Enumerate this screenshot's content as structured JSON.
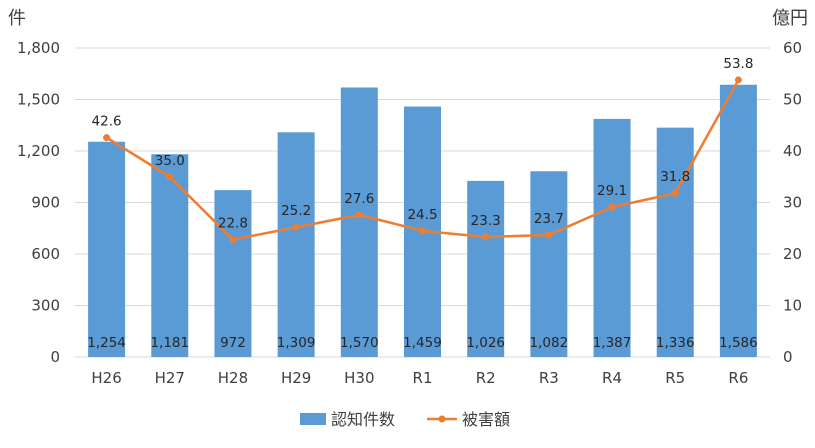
{
  "chart_data": {
    "type": "bar+line",
    "categories": [
      "H26",
      "H27",
      "H28",
      "H29",
      "H30",
      "R1",
      "R2",
      "R3",
      "R4",
      "R5",
      "R6"
    ],
    "series": [
      {
        "name": "認知件数",
        "type": "bar",
        "axis": "left",
        "color": "#5B9BD5",
        "values": [
          1254,
          1181,
          972,
          1309,
          1570,
          1459,
          1026,
          1082,
          1387,
          1336,
          1586
        ],
        "labels": [
          "1,254",
          "1,181",
          "972",
          "1,309",
          "1,570",
          "1,459",
          "1,026",
          "1,082",
          "1,387",
          "1,336",
          "1,586"
        ]
      },
      {
        "name": "被害額",
        "type": "line",
        "axis": "right",
        "color": "#ED7D31",
        "values": [
          42.6,
          35.0,
          22.8,
          25.2,
          27.6,
          24.5,
          23.3,
          23.7,
          29.1,
          31.8,
          53.8
        ],
        "labels": [
          "42.6",
          "35.0",
          "22.8",
          "25.2",
          "27.6",
          "24.5",
          "23.3",
          "23.7",
          "29.1",
          "31.8",
          "53.8"
        ]
      }
    ],
    "y_left": {
      "unit": "件",
      "min": 0,
      "max": 1800,
      "ticks": [
        0,
        300,
        600,
        900,
        1200,
        1500,
        1800
      ],
      "tick_labels": [
        "0",
        "300",
        "600",
        "900",
        "1,200",
        "1,500",
        "1,800"
      ]
    },
    "y_right": {
      "unit": "億円",
      "min": 0,
      "max": 60,
      "ticks": [
        0,
        10,
        20,
        30,
        40,
        50,
        60
      ],
      "tick_labels": [
        "0",
        "10",
        "20",
        "30",
        "40",
        "50",
        "60"
      ]
    },
    "grid": true,
    "legend_position": "bottom"
  }
}
